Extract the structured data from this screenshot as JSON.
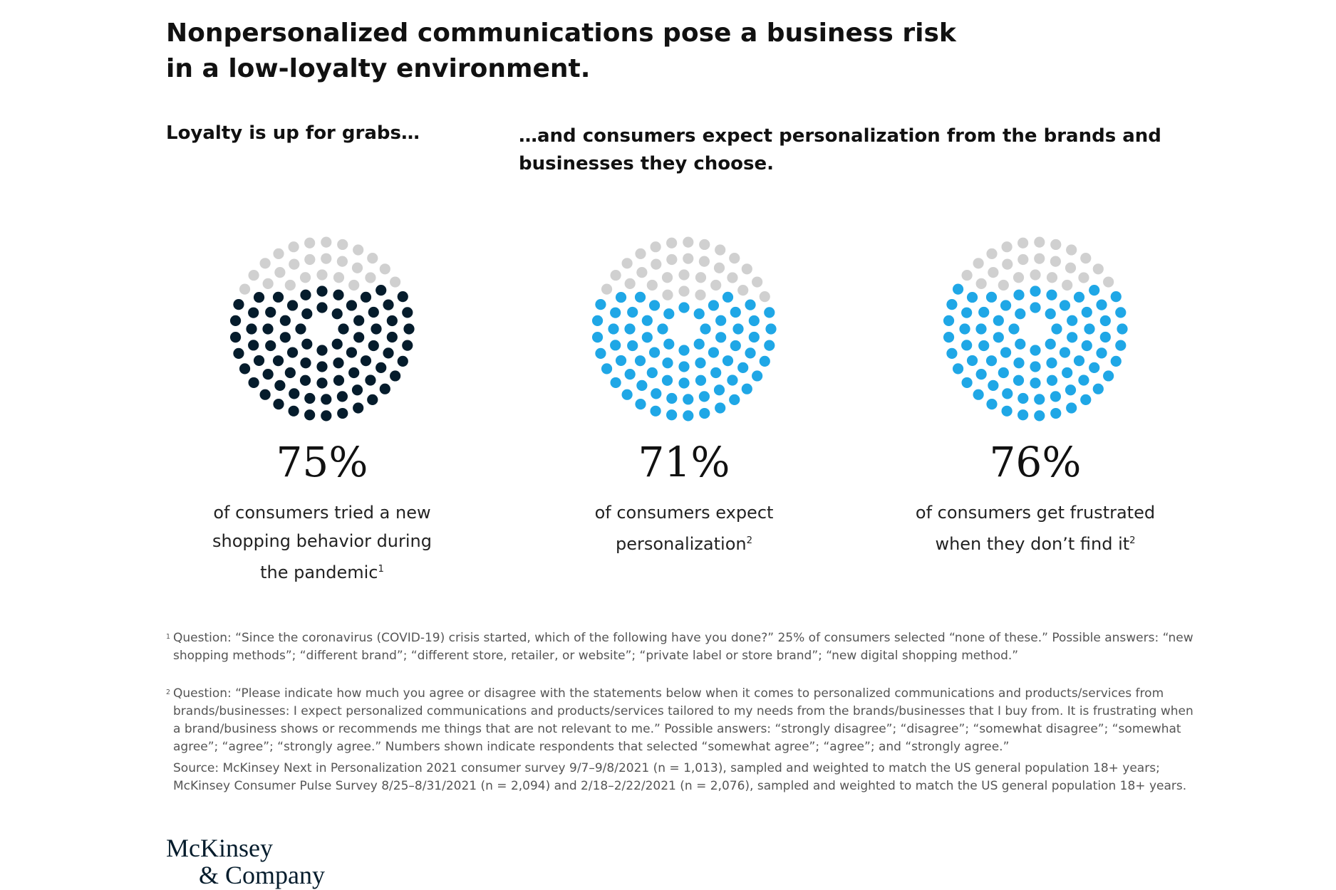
{
  "header": {
    "title": "Nonpersonalized communications pose a business risk in a low-loyalty environment.",
    "subtitle_left": "Loyalty is up for grabs…",
    "subtitle_right": "…and consumers expect personalization from the brands and businesses they choose."
  },
  "chart_data": [
    {
      "type": "dot",
      "value": 75,
      "value_label": "75%",
      "caption": "of consumers tried a new shopping behavior during the pandemic",
      "note": "1",
      "color": "#051c2c",
      "rest_color": "#d0d0d0"
    },
    {
      "type": "dot",
      "value": 71,
      "value_label": "71%",
      "caption": "of consumers expect personalization",
      "note": "2",
      "color": "#1fa7e6",
      "rest_color": "#d0d0d0"
    },
    {
      "type": "dot",
      "value": 76,
      "value_label": "76%",
      "caption": "of consumers get frustrated when they don’t find it",
      "note": "2",
      "color": "#1fa7e6",
      "rest_color": "#d0d0d0"
    }
  ],
  "footnotes": [
    {
      "mark": "1",
      "text": "Question: “Since the coronavirus (COVID-19) crisis started, which of the following have you done?” 25% of consumers selected “none of these.” Possible answers: “new shopping methods”; “different brand”; “different store, retailer, or website”; “private label or store brand”; “new digital shopping method.”"
    },
    {
      "mark": "2",
      "text": "Question: “Please indicate how much you agree or disagree with the statements below when it comes to personalized communications and products/services from brands/businesses: I expect personalized communications and products/services tailored to my needs from the brands/businesses that I buy from. It is frustrating when a brand/business shows or recommends me things that are not relevant to me.” Possible answers: “strongly disagree”; “disagree”; “somewhat disagree”; “somewhat agree”; “agree”; “strongly agree.” Numbers shown indicate respondents that selected “somewhat agree”; “agree”; and “strongly agree.”"
    }
  ],
  "source": "Source: McKinsey Next in Personalization 2021 consumer survey 9/7–9/8/2021 (n = 1,013), sampled and weighted to match the US general population 18+ years; McKinsey Consumer Pulse Survey 8/25–8/31/2021 (n = 2,094) and 2/18–2/22/2021 (n = 2,076), sampled and weighted to match the US general population 18+ years.",
  "logo": [
    "McKinsey",
    "& Company"
  ]
}
